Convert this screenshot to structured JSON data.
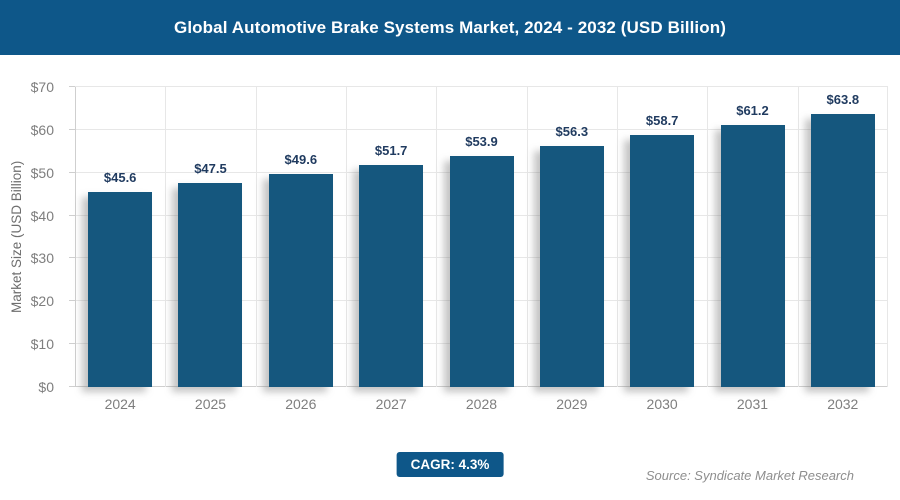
{
  "title": "Global Automotive Brake Systems Market, 2024 - 2032 (USD Billion)",
  "colors": {
    "header_bg": "#0E5789",
    "bar_fill": "#15577E",
    "value_label": "#1F3A5F",
    "axis_text": "#7E7E7E",
    "ylabel_text": "#6E6E6E",
    "grid": "#E7E7E7",
    "axis_line": "#CFCFCF",
    "badge_bg": "#0E5789",
    "source_text": "#8E8E8E"
  },
  "chart_data": {
    "type": "bar",
    "title": "Global Automotive Brake Systems Market, 2024 - 2032 (USD Billion)",
    "categories": [
      "2024",
      "2025",
      "2026",
      "2027",
      "2028",
      "2029",
      "2030",
      "2031",
      "2032"
    ],
    "values": [
      45.6,
      47.5,
      49.6,
      51.7,
      53.9,
      56.3,
      58.7,
      61.2,
      63.8
    ],
    "value_labels": [
      "$45.6",
      "$47.5",
      "$49.6",
      "$51.7",
      "$53.9",
      "$56.3",
      "$58.7",
      "$61.2",
      "$63.8"
    ],
    "xlabel": "",
    "ylabel": "Market Size (USD Billion)",
    "ylim": [
      0,
      70
    ],
    "ytick_step": 10,
    "ytick_labels": [
      "$0",
      "$10",
      "$20",
      "$30",
      "$40",
      "$50",
      "$60",
      "$70"
    ],
    "grid": true,
    "legend": false
  },
  "footer": {
    "cagr_label": "CAGR: 4.3%",
    "source": "Source: Syndicate Market Research"
  }
}
